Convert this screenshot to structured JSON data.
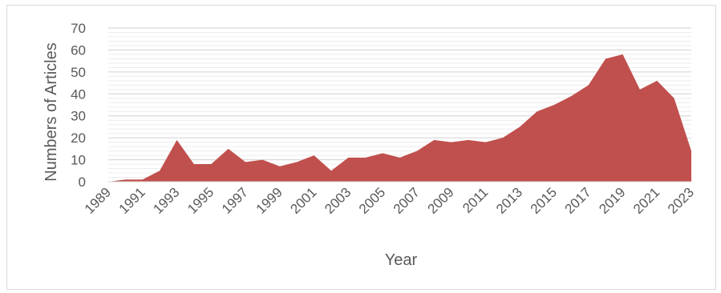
{
  "chart_data": {
    "type": "area",
    "title": "",
    "xlabel": "Year",
    "ylabel": "Numbers of Articles",
    "ylim": [
      0,
      70
    ],
    "yticks": [
      "0",
      "10",
      "20",
      "30",
      "40",
      "50",
      "60",
      "70"
    ],
    "x": [
      1989,
      1990,
      1991,
      1992,
      1993,
      1994,
      1995,
      1996,
      1997,
      1998,
      1999,
      2000,
      2001,
      2002,
      2003,
      2004,
      2005,
      2006,
      2007,
      2008,
      2009,
      2010,
      2011,
      2012,
      2013,
      2014,
      2015,
      2016,
      2017,
      2018,
      2019,
      2020,
      2021,
      2022,
      2023
    ],
    "xtick_labels": [
      "1989",
      "1991",
      "1993",
      "1995",
      "1997",
      "1999",
      "2001",
      "2003",
      "2005",
      "2007",
      "2009",
      "2011",
      "2013",
      "2015",
      "2017",
      "2019",
      "2021",
      "2023"
    ],
    "series": [
      {
        "values": [
          0,
          1,
          1,
          5,
          19,
          8,
          8,
          15,
          9,
          10,
          7,
          9,
          12,
          5,
          11,
          11,
          13,
          11,
          14,
          19,
          18,
          19,
          18,
          20,
          25,
          32,
          35,
          39,
          44,
          56,
          58,
          42,
          46,
          38,
          14
        ],
        "color": "#c0504d"
      }
    ],
    "grid": true,
    "grid_color": "#d9d9d9",
    "legend": "none"
  }
}
